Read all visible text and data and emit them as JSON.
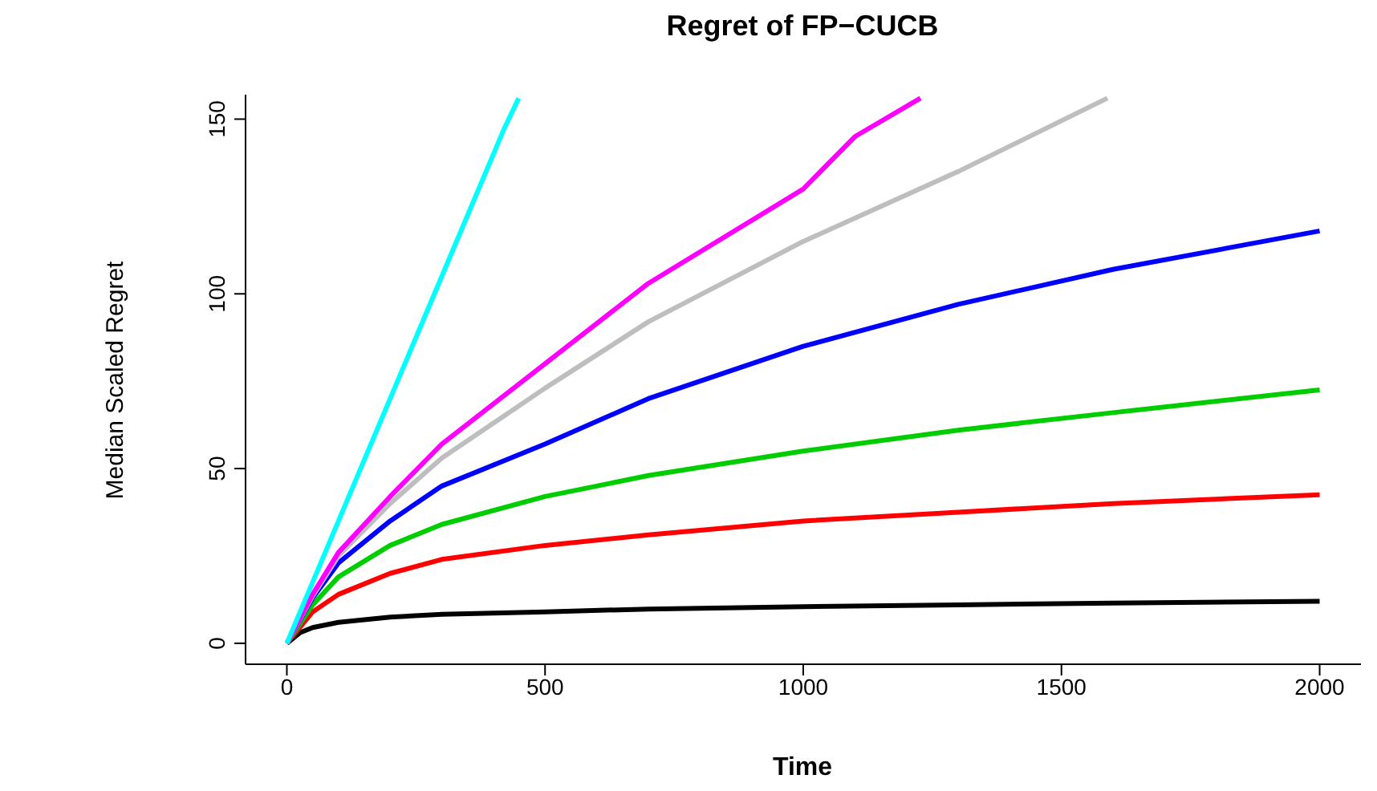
{
  "chart_data": {
    "type": "line",
    "title": "Regret of FP−CUCB",
    "xlabel": "Time",
    "ylabel": "Median Scaled Regret",
    "xlim": [
      -80,
      2080
    ],
    "ylim": [
      -6,
      157
    ],
    "xticks": [
      0,
      500,
      1000,
      1500,
      2000
    ],
    "yticks": [
      0,
      50,
      100,
      150
    ],
    "grid": false,
    "legend": false,
    "marker": "none",
    "line_style": "solid",
    "series": [
      {
        "color": "#000000",
        "x": [
          0,
          25,
          50,
          100,
          200,
          300,
          500,
          700,
          1000,
          1300,
          1600,
          2000
        ],
        "values": [
          0,
          3,
          4.5,
          6,
          7.5,
          8.3,
          9,
          9.8,
          10.5,
          11,
          11.5,
          12
        ]
      },
      {
        "color": "#ff0000",
        "x": [
          0,
          50,
          100,
          200,
          300,
          500,
          700,
          1000,
          1300,
          1600,
          2000
        ],
        "values": [
          0,
          9,
          14,
          20,
          24,
          28,
          31,
          35,
          37.5,
          40,
          42.5
        ]
      },
      {
        "color": "#00cd00",
        "x": [
          0,
          50,
          100,
          200,
          300,
          500,
          700,
          1000,
          1300,
          1600,
          2000
        ],
        "values": [
          0,
          11,
          19,
          28,
          34,
          42,
          48,
          55,
          61,
          66,
          72.5
        ]
      },
      {
        "color": "#0000ff",
        "x": [
          0,
          50,
          100,
          200,
          300,
          500,
          700,
          1000,
          1300,
          1600,
          2000
        ],
        "values": [
          0,
          13,
          23,
          35,
          45,
          57,
          70,
          85,
          97,
          107,
          118
        ]
      },
      {
        "color": "#bebebe",
        "x": [
          0,
          50,
          100,
          200,
          300,
          500,
          700,
          1000,
          1300,
          1589
        ],
        "values": [
          0,
          13.5,
          25,
          40,
          53,
          73,
          92,
          115,
          135,
          156
        ]
      },
      {
        "color": "#ff00ff",
        "x": [
          0,
          50,
          100,
          200,
          300,
          500,
          700,
          1000,
          1100,
          1227
        ],
        "values": [
          0,
          14,
          26,
          42,
          57,
          80,
          103,
          130,
          145,
          156
        ]
      },
      {
        "color": "#00ffff",
        "x": [
          0,
          100,
          200,
          300,
          400,
          420,
          449
        ],
        "values": [
          0,
          35,
          70,
          105,
          140,
          147,
          156
        ]
      }
    ]
  }
}
